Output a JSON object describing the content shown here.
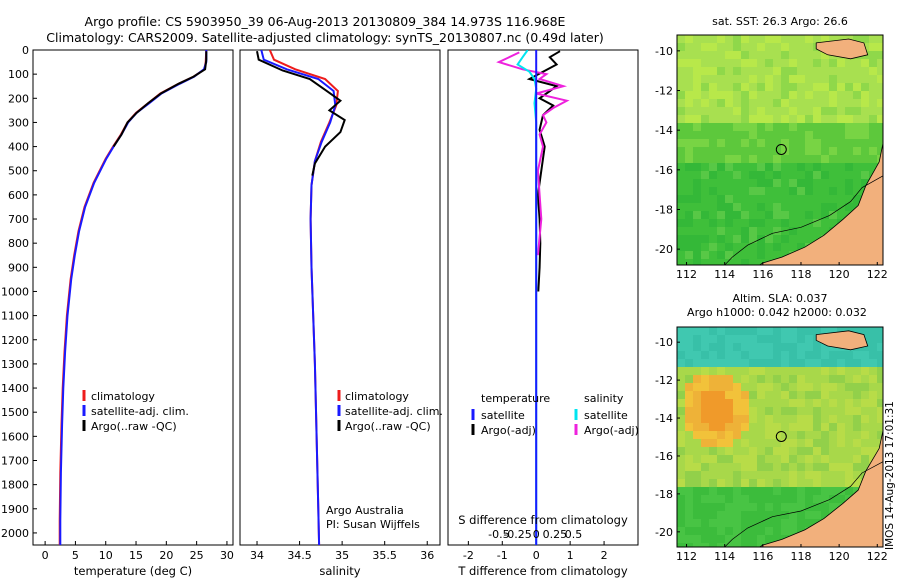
{
  "header": {
    "line1": "Argo profile: CS 5903950_39 06-Aug-2013 20130809_384 14.973S 116.968E",
    "line2": "Climatology: CARS2009. Satellite-adjusted climatology: synTS_20130807.nc (0.49d later)"
  },
  "colors": {
    "climatology": "#ee1c1c",
    "satellite": "#1a1aff",
    "argo": "#000000",
    "sal_satellite": "#00e5f0",
    "sal_argo": "#ee22dd",
    "land": "#f2b07c"
  },
  "chart_data": [
    {
      "type": "line",
      "panel": "temperature",
      "xlabel": "temperature (deg C)",
      "xlim": [
        -2,
        31
      ],
      "ylim": [
        2050,
        0
      ],
      "xticks": [
        0,
        5,
        10,
        15,
        20,
        25,
        30
      ],
      "yticks": [
        0,
        100,
        200,
        300,
        400,
        500,
        600,
        700,
        800,
        900,
        1000,
        1100,
        1200,
        1300,
        1400,
        1500,
        1600,
        1700,
        1800,
        1900,
        2000
      ],
      "legend": [
        "climatology",
        "satellite-adj. clim.",
        "Argo(..raw -QC)"
      ],
      "series": [
        {
          "name": "climatology",
          "x": [
            26.6,
            26.5,
            26.3,
            24.5,
            22.0,
            19.0,
            17.0,
            15.0,
            13.6,
            12.5,
            11.2,
            10.0,
            8.0,
            6.5,
            5.5,
            4.8,
            4.2,
            3.6,
            3.2,
            2.9,
            2.7,
            2.5,
            2.4,
            2.4
          ],
          "y": [
            0,
            50,
            80,
            110,
            140,
            180,
            220,
            260,
            300,
            350,
            400,
            450,
            550,
            650,
            750,
            850,
            950,
            1100,
            1250,
            1400,
            1550,
            1750,
            1950,
            2050
          ]
        },
        {
          "name": "satellite-adj. clim.",
          "x": [
            26.6,
            26.6,
            26.2,
            24.6,
            22.2,
            19.2,
            17.2,
            15.1,
            13.7,
            12.6,
            11.3,
            10.1,
            8.1,
            6.6,
            5.6,
            4.9,
            4.3,
            3.7,
            3.3,
            3.0,
            2.8,
            2.6,
            2.5,
            2.5
          ],
          "y": [
            0,
            50,
            80,
            110,
            140,
            180,
            220,
            260,
            300,
            350,
            400,
            450,
            550,
            650,
            750,
            850,
            950,
            1100,
            1250,
            1400,
            1550,
            1750,
            1950,
            2050
          ]
        },
        {
          "name": "Argo(..raw -QC)",
          "x": [
            26.6,
            26.6,
            26.4,
            24.5,
            22.0,
            19.1,
            17.0,
            15.1,
            13.6,
            12.6,
            11.3
          ],
          "y": [
            5,
            40,
            80,
            110,
            140,
            180,
            220,
            260,
            300,
            350,
            400
          ]
        }
      ]
    },
    {
      "type": "line",
      "panel": "salinity",
      "xlabel": "salinity",
      "xlim": [
        33.8,
        36.15
      ],
      "ylim": [
        2050,
        0
      ],
      "xticks": [
        "34",
        "34.5",
        "35",
        "35.5",
        "36"
      ],
      "legend": [
        "climatology",
        "satellite-adj. clim.",
        "Argo(..raw -QC)"
      ],
      "annotations": [
        "Argo Australia",
        "PI: Susan Wijffels"
      ],
      "series": [
        {
          "name": "climatology",
          "x": [
            34.15,
            34.2,
            34.45,
            34.8,
            34.95,
            34.93,
            34.85,
            34.75,
            34.68,
            34.64,
            34.63,
            34.64,
            34.66,
            34.68,
            34.7,
            34.72,
            34.73
          ],
          "y": [
            0,
            40,
            80,
            120,
            170,
            230,
            300,
            380,
            460,
            560,
            700,
            900,
            1100,
            1300,
            1600,
            1900,
            2050
          ]
        },
        {
          "name": "satellite-adj. clim.",
          "x": [
            34.05,
            34.08,
            34.35,
            34.72,
            34.9,
            34.92,
            34.86,
            34.76,
            34.68,
            34.64,
            34.63,
            34.64,
            34.66,
            34.68,
            34.7,
            34.72,
            34.73
          ],
          "y": [
            0,
            40,
            80,
            120,
            170,
            230,
            300,
            380,
            460,
            560,
            700,
            900,
            1100,
            1300,
            1600,
            1900,
            2050
          ]
        },
        {
          "name": "Argo(..raw -QC)",
          "x": [
            34.0,
            34.02,
            34.3,
            34.62,
            34.8,
            34.98,
            34.85,
            35.03,
            34.98,
            34.8,
            34.68,
            34.65
          ],
          "y": [
            5,
            40,
            85,
            120,
            165,
            210,
            250,
            290,
            340,
            400,
            470,
            520
          ]
        }
      ]
    },
    {
      "type": "line",
      "panel": "difference",
      "xlabel": "T difference from climatology",
      "xlabel2": "S difference from climatology",
      "xlim": [
        -2.6,
        3.0
      ],
      "ylim": [
        2050,
        0
      ],
      "xticks": [
        "-2",
        "-1",
        "0",
        "1",
        "2"
      ],
      "xticks2": [
        "-0.5",
        "-0.25",
        "0",
        "0.25",
        "0.5"
      ],
      "legend": {
        "col1_title": "temperature",
        "col2_title": "salinity",
        "items": [
          "satellite",
          "Argo(-adj)",
          "satellite",
          "Argo(-adj)"
        ]
      },
      "series": [
        {
          "name": "satellite",
          "x": [
            0,
            0,
            0,
            0,
            0,
            0
          ],
          "y": [
            0,
            200,
            500,
            1000,
            1500,
            2050
          ]
        },
        {
          "name": "Argo(-adj)",
          "x": [
            0.7,
            0.4,
            0.6,
            0.2,
            -0.2,
            0.6,
            0.3,
            0.1,
            0.5,
            0.2,
            0.1,
            0.25,
            0.15,
            0.05,
            0.1,
            0.12,
            0.1,
            0.06
          ],
          "y": [
            5,
            30,
            60,
            90,
            120,
            150,
            180,
            200,
            230,
            270,
            330,
            400,
            500,
            600,
            700,
            800,
            900,
            1000
          ]
        },
        {
          "name": "sal satellite",
          "x": [
            -0.25,
            -0.4,
            -0.55,
            -0.2,
            -0.05,
            0.0,
            -0.05,
            0.0,
            0.0,
            0.0,
            0.0
          ],
          "y": [
            0,
            30,
            60,
            90,
            120,
            160,
            220,
            300,
            500,
            1000,
            2050
          ]
        },
        {
          "name": "sal Argo(-adj)",
          "x": [
            -0.5,
            -1.1,
            -0.4,
            0.3,
            0.1,
            0.8,
            0.0,
            0.9,
            0.5,
            0.2,
            0.3,
            0.1,
            0.2,
            0.05,
            0.15,
            0.05
          ],
          "y": [
            10,
            50,
            80,
            100,
            120,
            150,
            180,
            210,
            240,
            270,
            300,
            350,
            400,
            500,
            700,
            850
          ]
        }
      ]
    },
    {
      "type": "heatmap",
      "panel": "map-sst",
      "title": "sat. SST: 26.3 Argo: 26.6",
      "xlim": [
        111.5,
        122.3
      ],
      "ylim": [
        -20.8,
        -9.2
      ],
      "xticks": [
        "112",
        "114",
        "116",
        "118",
        "120",
        "122"
      ],
      "yticks": [
        "-10",
        "-12",
        "-14",
        "-16",
        "-18",
        "-20"
      ],
      "marker": {
        "lon": 116.968,
        "lat": -14.973
      }
    },
    {
      "type": "heatmap",
      "panel": "map-sla",
      "title": "Altim. SLA: 0.037",
      "subtitle": "Argo h1000: 0.042 h2000: 0.032",
      "xlim": [
        111.5,
        122.3
      ],
      "ylim": [
        -20.8,
        -9.2
      ],
      "xticks": [
        "112",
        "114",
        "116",
        "118",
        "120",
        "122"
      ],
      "yticks": [
        "-10",
        "-12",
        "-14",
        "-16",
        "-18",
        "-20"
      ],
      "marker": {
        "lon": 116.968,
        "lat": -14.973
      }
    }
  ],
  "footer": {
    "timestamp": "IMOS 14-Aug-2013 17:01:31"
  }
}
